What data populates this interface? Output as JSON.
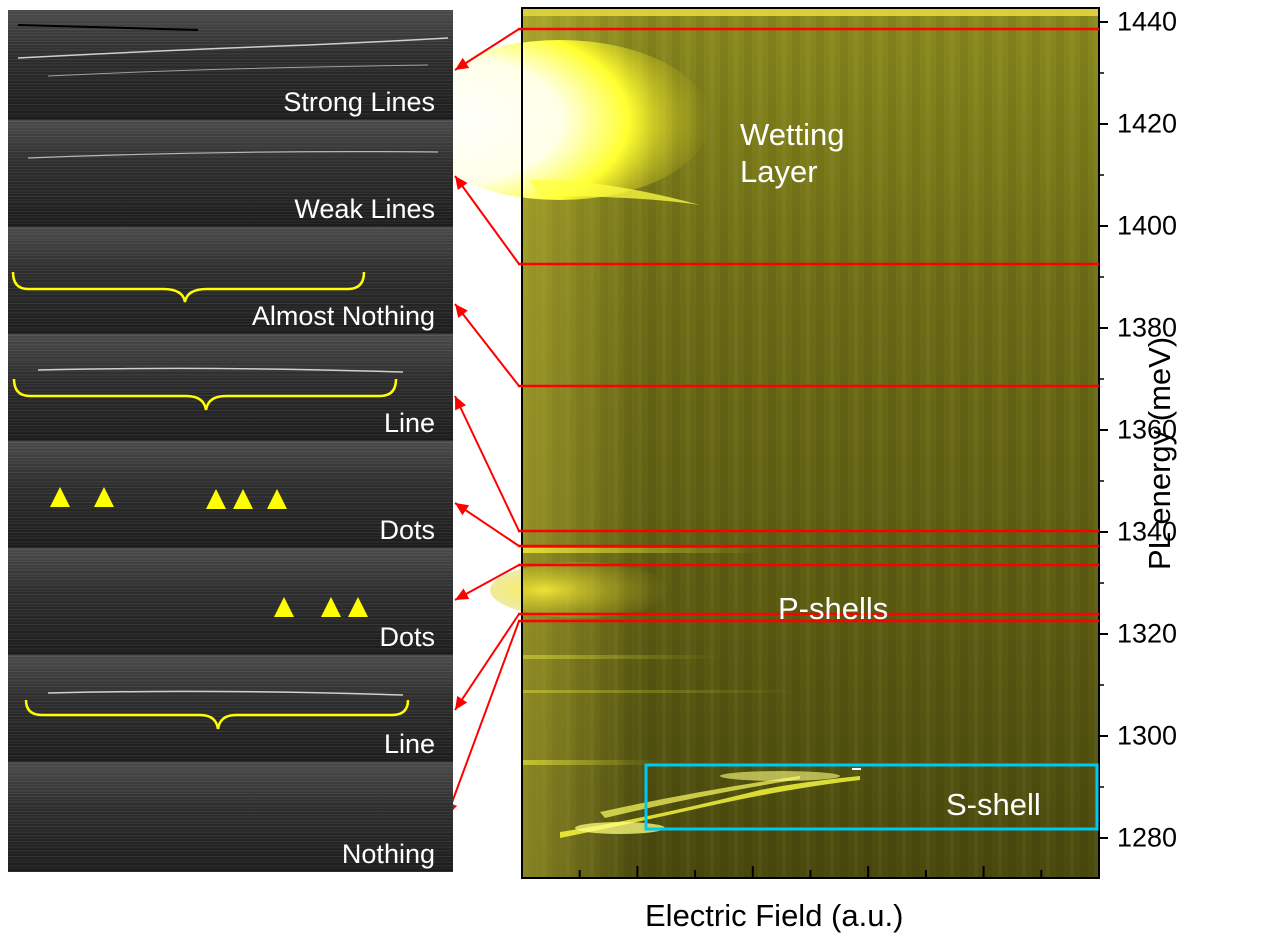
{
  "image_panels": [
    {
      "label": "Strong Lines"
    },
    {
      "label": "Weak Lines"
    },
    {
      "label": "Almost Nothing"
    },
    {
      "label": "Line"
    },
    {
      "label": "Dots"
    },
    {
      "label": "Dots"
    },
    {
      "label": "Line"
    },
    {
      "label": "Nothing"
    }
  ],
  "map": {
    "annotations": {
      "wetting_layer": [
        "Wetting",
        "Layer"
      ],
      "p_shells": "P-shells",
      "s_shell": "S-shell"
    },
    "y_axis": {
      "label": "PL energy (meV)",
      "ticks": [
        "1440",
        "1420",
        "1400",
        "1380",
        "1360",
        "1340",
        "1320",
        "1300",
        "1280"
      ]
    },
    "x_axis": {
      "label": "Electric Field (a.u.)"
    },
    "colors": {
      "marker_lines": "#ff0000",
      "s_shell_box": "#00c8f0",
      "triangles": "#ffff00",
      "braces": "#ffff00",
      "colormap_base": "#5a5a10"
    }
  }
}
